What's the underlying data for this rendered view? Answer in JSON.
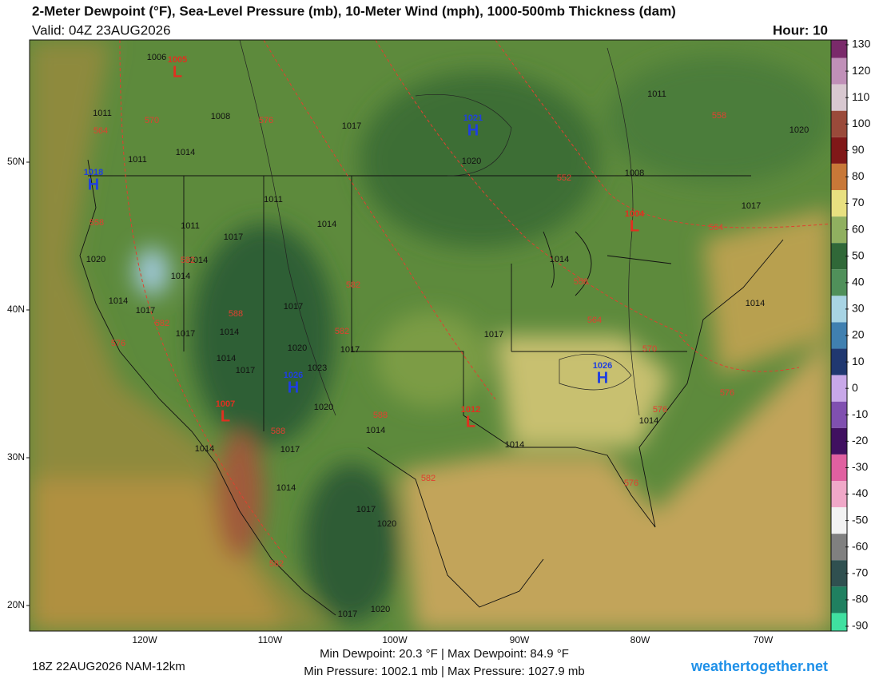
{
  "header": {
    "title": "2-Meter Dewpoint (°F), Sea-Level Pressure (mb), 10-Meter Wind (mph), 1000-500mb Thickness (dam)",
    "valid": "Valid: 04Z 23AUG2026",
    "hour": "Hour: 10"
  },
  "colorbar": {
    "ticks": [
      130,
      120,
      110,
      100,
      90,
      80,
      70,
      60,
      50,
      40,
      30,
      20,
      10,
      0,
      -10,
      -20,
      -30,
      -40,
      -50,
      -60,
      -70,
      -80,
      -90
    ]
  },
  "axes": {
    "lat_labels": [
      "50N",
      "40N",
      "30N",
      "20N"
    ],
    "lon_labels": [
      "120W",
      "110W",
      "100W",
      "90W",
      "80W",
      "70W"
    ]
  },
  "map": {
    "pressure_labels": [
      "1006",
      "1011",
      "1008",
      "1017",
      "1014",
      "1011",
      "1020",
      "1011",
      "1020",
      "1008",
      "1011",
      "1014",
      "1011",
      "1017",
      "1014",
      "1020",
      "1014",
      "1014",
      "1014",
      "1017",
      "1017",
      "1017",
      "1014",
      "1020",
      "1017",
      "1017",
      "1014",
      "1023",
      "1017",
      "1014",
      "1014",
      "1020",
      "1014",
      "1014",
      "1017",
      "1014",
      "1014",
      "1017",
      "1020",
      "1017",
      "1020",
      "1017"
    ],
    "thickness_labels": [
      "564",
      "570",
      "576",
      "558",
      "552",
      "564",
      "558",
      "582",
      "558",
      "582",
      "588",
      "582",
      "582",
      "564",
      "570",
      "576",
      "576",
      "576",
      "588",
      "588",
      "582",
      "576",
      "582"
    ],
    "centers": [
      {
        "kind": "L",
        "value": "1005"
      },
      {
        "kind": "H",
        "value": "1021"
      },
      {
        "kind": "H",
        "value": "1018"
      },
      {
        "kind": "L",
        "value": "1004"
      },
      {
        "kind": "H",
        "value": "1026"
      },
      {
        "kind": "L",
        "value": "1007"
      },
      {
        "kind": "H",
        "value": "1026"
      },
      {
        "kind": "L",
        "value": "1012"
      }
    ]
  },
  "footer": {
    "run": "18Z 22AUG2026 NAM-12km",
    "dewpoint_stats": "Min Dewpoint:  20.3 °F | Max Dewpoint:  84.9 °F",
    "pressure_stats": "Min Pressure: 1002.1 mb | Max Pressure: 1027.9 mb",
    "brand": "weathertogether.net"
  }
}
